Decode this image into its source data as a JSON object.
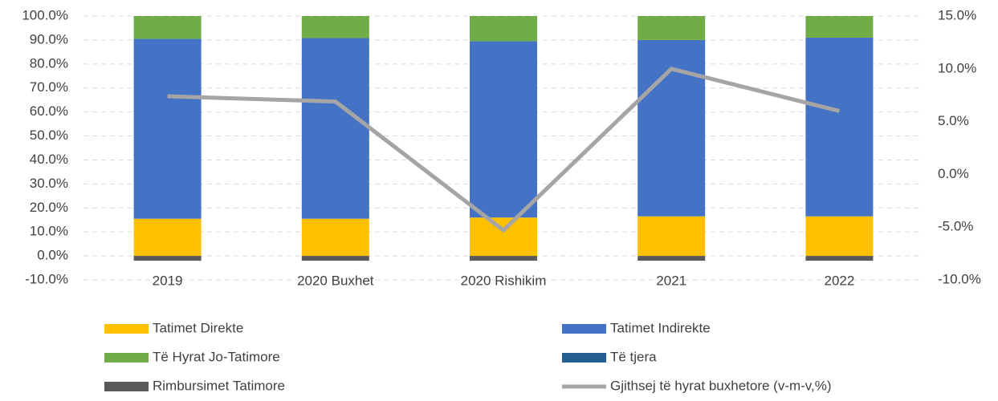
{
  "chart_data": {
    "type": "bar",
    "stacked": true,
    "categories": [
      "2019",
      "2020 Buxhet",
      "2020 Rishikim",
      "2021",
      "2022"
    ],
    "series": [
      {
        "name": "Tatimet Direkte",
        "color": "#ffc000",
        "values": [
          15.5,
          15.5,
          16,
          16.5,
          16.5
        ]
      },
      {
        "name": "Tatimet Indirekte",
        "color": "#4472c4",
        "values": [
          75,
          75.3,
          73.5,
          73.5,
          74.5
        ]
      },
      {
        "name": "Të Hyrat Jo-Tatimore",
        "color": "#70ad47",
        "values": [
          9.5,
          9.2,
          10.5,
          10,
          9
        ]
      },
      {
        "name": "Të tjera",
        "color": "#255e91",
        "values": [
          0,
          0,
          0,
          0,
          0
        ]
      },
      {
        "name": "Rimbursimet Tatimore",
        "color": "#595959",
        "values": [
          -2,
          -2,
          -2,
          -2,
          -2
        ]
      },
      {
        "name": "Gjithsej të hyrat buxhetore (v-m-v,%)",
        "color": "#a5a5a5",
        "type": "line",
        "axis": "y2",
        "values": [
          7.4,
          6.9,
          -5.3,
          10.0,
          6.0
        ]
      }
    ],
    "ylim": [
      -10,
      100
    ],
    "yticks": [
      {
        "value": -10,
        "label": "-10.0%"
      },
      {
        "value": 0,
        "label": "0.0%"
      },
      {
        "value": 10,
        "label": "10.0%"
      },
      {
        "value": 20,
        "label": "20.0%"
      },
      {
        "value": 30,
        "label": "30.0%"
      },
      {
        "value": 40,
        "label": "40.0%"
      },
      {
        "value": 50,
        "label": "50.0%"
      },
      {
        "value": 60,
        "label": "60.0%"
      },
      {
        "value": 70,
        "label": "70.0%"
      },
      {
        "value": 80,
        "label": "80.0%"
      },
      {
        "value": 90,
        "label": "90.0%"
      },
      {
        "value": 100,
        "label": "100.0%"
      }
    ],
    "y2lim": [
      -10,
      15
    ],
    "y2ticks": [
      {
        "value": -10,
        "label": "-10.0%"
      },
      {
        "value": -5,
        "label": "-5.0%"
      },
      {
        "value": 0,
        "label": "0.0%"
      },
      {
        "value": 5,
        "label": "5.0%"
      },
      {
        "value": 10,
        "label": "10.0%"
      },
      {
        "value": 15,
        "label": "15.0%"
      }
    ],
    "grid": true,
    "legend": "bottom"
  }
}
